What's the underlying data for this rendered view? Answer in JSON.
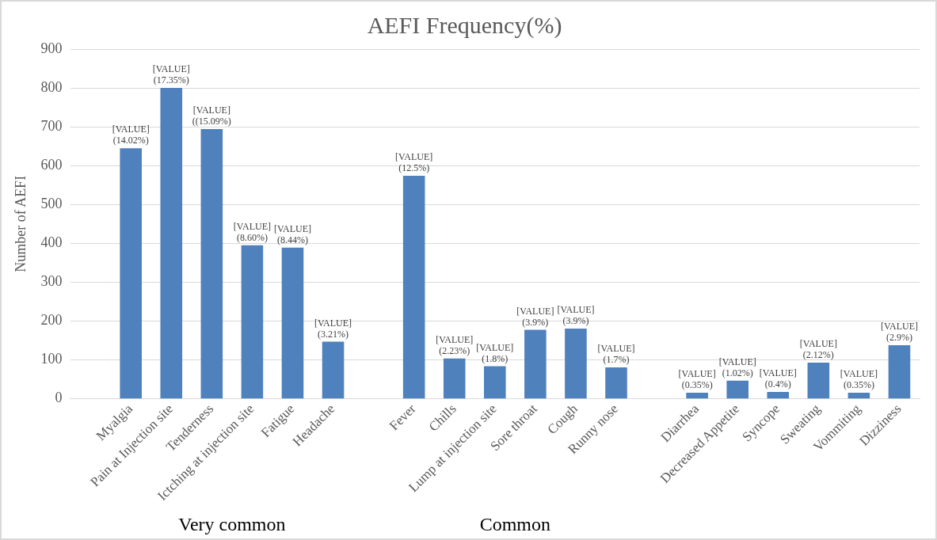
{
  "chart_data": {
    "type": "bar",
    "title": "AEFI Frequency(%)",
    "ylabel": "Number of AEFI",
    "categories": [
      null,
      "Myalgia",
      "Pain at Injection site",
      "Tenderness",
      "Ictching at injection site",
      "Fatigue",
      "Headache",
      null,
      "Fever",
      "Chills",
      "Lump at injection site",
      "Sore throat",
      "Cough",
      "Runny nose",
      null,
      "Diarrhea",
      "Decreased Appetite",
      "Syncope",
      "Sweating",
      "Vommiting",
      "Dizziness"
    ],
    "values": [
      null,
      645,
      800,
      694,
      395,
      389,
      147,
      null,
      574,
      104,
      84,
      178,
      181,
      81,
      null,
      16,
      47,
      18,
      93,
      16,
      138
    ],
    "color": "#4f81bd",
    "ylim": [
      0,
      900
    ],
    "yticks": [
      0,
      100,
      200,
      300,
      400,
      500,
      600,
      700,
      800,
      900
    ],
    "grid": "y",
    "legend": false,
    "annotations": [
      "Very common",
      "Common",
      {
        "text": "[VALUE](14.02%)",
        "x": "Myalgia",
        "y": 645
      },
      {
        "text": "[VALUE](17.35%)",
        "x": "Pain at Injection site",
        "y": 800
      },
      {
        "text": "[VALUE]((15.09%)",
        "x": "Tenderness",
        "y": 694
      },
      {
        "text": "[VALUE](8.60%)",
        "x": "Ictching at injection site",
        "y": 395
      },
      {
        "text": "[VALUE](8.44%)",
        "x": "Fatigue",
        "y": 389
      },
      {
        "text": "[VALUE](3.21%)",
        "x": "Headache",
        "y": 147
      },
      {
        "text": "[VALUE](12.5%)",
        "x": "Fever",
        "y": 574
      },
      {
        "text": "[VALUE](2.23%)",
        "x": "Chills",
        "y": 104
      },
      {
        "text": "[VALUE](1.8%)",
        "x": "Lump at injection site",
        "y": 84
      },
      {
        "text": "[VALUE](3.9%)",
        "x": "Sore throat",
        "y": 178
      },
      {
        "text": "[VALUE](3.9%)",
        "x": "Cough",
        "y": 181
      },
      {
        "text": "[VALUE](1.7%)",
        "x": "Runny nose",
        "y": 81
      },
      {
        "text": "[VALUE](0.35%)",
        "x": "Diarrhea",
        "y": 16
      },
      {
        "text": "[VALUE](1.02%)",
        "x": "Decreased Appetite",
        "y": 47
      },
      {
        "text": "[VALUE](0.4%)",
        "x": "Syncope",
        "y": 18
      },
      {
        "text": "[VALUE](2.12%)",
        "x": "Sweating",
        "y": 93
      },
      {
        "text": "[VALUE](0.35%)",
        "x": "Vommiting",
        "y": 16
      },
      {
        "text": "[VALUE](2.9%)",
        "x": "Dizziness",
        "y": 138
      }
    ]
  }
}
